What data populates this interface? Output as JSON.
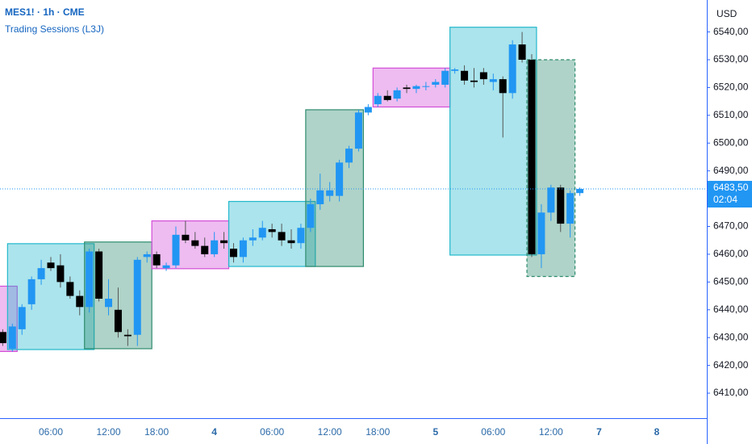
{
  "header": {
    "symbol": "MES1! · 1h · CME",
    "indicator": "Trading Sessions (L3J)",
    "currency": "USD"
  },
  "chart_data": {
    "type": "candlestick",
    "categories": [
      null,
      null,
      null,
      null,
      null,
      "06:00",
      null,
      null,
      null,
      null,
      null,
      "12:00",
      null,
      null,
      null,
      null,
      "18:00",
      null,
      null,
      null,
      null,
      null,
      "4",
      null,
      null,
      null,
      null,
      null,
      "06:00",
      null,
      null,
      null,
      null,
      null,
      "12:00",
      null,
      null,
      null,
      null,
      "18:00",
      null,
      null,
      null,
      null,
      null,
      "5",
      null,
      null,
      null,
      null,
      null,
      "06:00",
      null,
      null,
      null,
      null,
      null,
      "12:00",
      null,
      null,
      null,
      null,
      "7",
      null,
      null,
      null,
      null,
      null,
      "8"
    ],
    "open": [
      6432,
      6426,
      6433,
      6442,
      6451,
      6457,
      6456,
      6450,
      6445,
      6441,
      6461,
      6441,
      6440,
      6431,
      6431,
      6459,
      6460,
      6455,
      6456,
      6467,
      6465,
      6463,
      6460,
      6465,
      6462,
      6459,
      6465,
      6466,
      6469,
      6468,
      6465,
      6464,
      6469.5,
      6478,
      6481,
      6481,
      6493,
      6498,
      6511,
      6514,
      6517,
      6516,
      6520,
      6519.5,
      6520.5,
      6521,
      6521,
      6526,
      6526,
      6522.5,
      6525.5,
      6522,
      6523,
      6518,
      6535.5,
      6530,
      6460,
      6475,
      6484,
      6471,
      6482,
      null,
      null,
      null,
      null,
      null,
      null,
      null,
      null
    ],
    "high": [
      6433,
      6435,
      6442,
      6452,
      6458,
      6459,
      6460,
      6452,
      6447,
      6462,
      6462,
      6451,
      6448,
      6433,
      6459,
      6461,
      6461,
      6457,
      6470,
      6472,
      6468,
      6466,
      6468,
      6468,
      6464,
      6466,
      6469,
      6472,
      6471,
      6471,
      6469,
      6471,
      6480,
      6489,
      6486,
      6494,
      6499,
      6512,
      6514,
      6518,
      6519,
      6520,
      6521,
      6521,
      6522,
      6523,
      6527,
      6527,
      6528,
      6527,
      6527,
      6525,
      6524,
      6537,
      6540,
      6532,
      6478,
      6485,
      6485,
      6483,
      6484,
      null,
      null,
      null,
      null,
      null,
      null,
      null,
      null
    ],
    "low": [
      6427,
      6425,
      6431,
      6440,
      6449,
      6454,
      6448,
      6444,
      6438,
      6439,
      6443,
      6438,
      6430,
      6427,
      6427,
      6457,
      6455,
      6454,
      6455,
      6464,
      6462,
      6459,
      6459,
      6462,
      6457,
      6457,
      6463,
      6465,
      6466,
      6463,
      6462,
      6462,
      6468,
      6476,
      6479,
      6479,
      6491,
      6497,
      6510,
      6513,
      6515,
      6515,
      6518,
      6518,
      6519,
      6520,
      6520,
      6525,
      6521,
      6520,
      6521,
      6519,
      6502,
      6516,
      6529,
      6459,
      6455,
      6472,
      6468,
      6466,
      6481,
      null,
      null,
      null,
      null,
      null,
      null,
      null,
      null
    ],
    "close": [
      6428,
      6434,
      6441,
      6451,
      6455,
      6455,
      6450,
      6445,
      6441,
      6461,
      6444,
      6444,
      6432,
      6430.5,
      6458,
      6460,
      6456,
      6456,
      6467,
      6465,
      6463,
      6460,
      6465,
      6464,
      6459,
      6465,
      6466,
      6469.5,
      6468,
      6465,
      6464,
      6469.5,
      6478,
      6483,
      6483,
      6493,
      6498,
      6511,
      6513,
      6517,
      6515.5,
      6519,
      6519.5,
      6520.5,
      6520.5,
      6522,
      6526,
      6526.5,
      6522.5,
      6522,
      6523,
      6523,
      6518,
      6535.5,
      6530,
      6460,
      6475,
      6484,
      6471,
      6482,
      6483.5,
      null,
      null,
      null,
      null,
      null,
      null,
      null,
      null
    ],
    "up_color": "#2196f3",
    "down_color": "#000000",
    "ylim": [
      6401,
      6551.5
    ],
    "yticks": [
      {
        "value": 6410,
        "label": "6410,00"
      },
      {
        "value": 6420,
        "label": "6420,00"
      },
      {
        "value": 6430,
        "label": "6430,00"
      },
      {
        "value": 6440,
        "label": "6440,00"
      },
      {
        "value": 6450,
        "label": "6450,00"
      },
      {
        "value": 6460,
        "label": "6460,00"
      },
      {
        "value": 6470,
        "label": "6470,00"
      },
      {
        "value": 6480,
        "label": "6480,00"
      },
      {
        "value": 6490,
        "label": "6490,00"
      },
      {
        "value": 6500,
        "label": "6500,00"
      },
      {
        "value": 6510,
        "label": "6510,00"
      },
      {
        "value": 6520,
        "label": "6520,00"
      },
      {
        "value": 6530,
        "label": "6530,00"
      },
      {
        "value": 6540,
        "label": "6540,00"
      }
    ],
    "last_price": {
      "value": 6483.5,
      "label": "6483,50"
    },
    "countdown": "02:04",
    "sessions": [
      {
        "start": 0,
        "end": 1,
        "high": 6448.5,
        "low": 6425,
        "color": "#d34ed8",
        "dashed": false
      },
      {
        "start": 1,
        "end": 9,
        "high": 6463.8,
        "low": 6425.7,
        "color": "#22b8cc",
        "dashed": false
      },
      {
        "start": 9,
        "end": 15,
        "high": 6464.4,
        "low": 6426,
        "color": "#2e8b6e",
        "dashed": false
      },
      {
        "start": 16,
        "end": 23,
        "high": 6472,
        "low": 6454.8,
        "color": "#d34ed8",
        "dashed": false
      },
      {
        "start": 24,
        "end": 32,
        "high": 6479,
        "low": 6455.6,
        "color": "#22b8cc",
        "dashed": false
      },
      {
        "start": 32,
        "end": 37,
        "high": 6512,
        "low": 6455.6,
        "color": "#2e8b6e",
        "dashed": false
      },
      {
        "start": 39,
        "end": 46,
        "high": 6527,
        "low": 6513,
        "color": "#d34ed8",
        "dashed": false
      },
      {
        "start": 47,
        "end": 55,
        "high": 6541.7,
        "low": 6459.7,
        "color": "#22b8cc",
        "dashed": false
      },
      {
        "start": 55,
        "end": 59,
        "high": 6530,
        "low": 6452,
        "color": "#2e8b6e",
        "dashed": true
      }
    ]
  }
}
